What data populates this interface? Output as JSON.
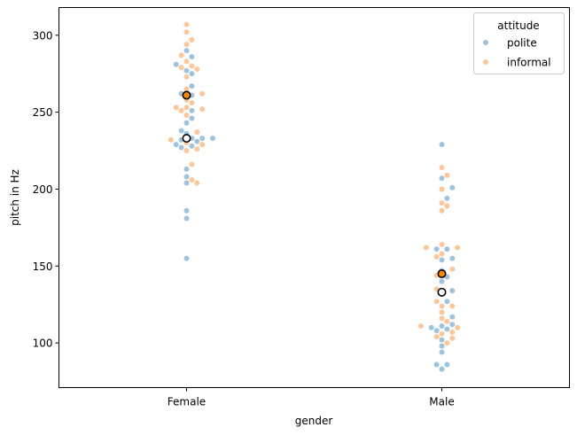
{
  "chart_data": {
    "type": "scatter",
    "subtype": "swarm",
    "xlabel": "gender",
    "ylabel": "pitch in Hz",
    "categories": [
      "Female",
      "Male"
    ],
    "ylim": [
      71,
      318
    ],
    "yticks": [
      100,
      150,
      200,
      250,
      300
    ],
    "grid": false,
    "legend": {
      "title": "attitude",
      "placement": "top-right",
      "entries": [
        {
          "name": "polite",
          "color": "#9ec3df"
        },
        {
          "name": "informal",
          "color": "#ffc698"
        }
      ]
    },
    "series": [
      {
        "name": "polite",
        "color": "#9ec3df",
        "points": [
          {
            "x": "Female",
            "y": [
              155,
              181,
              186,
              204,
              208,
              213,
              227,
              228,
              229,
              231,
              232,
              233,
              233,
              233,
              236,
              238,
              243,
              246,
              251,
              261,
              262,
              267,
              275,
              277,
              281,
              286,
              290
            ]
          },
          {
            "x": "Male",
            "y": [
              83,
              86,
              86,
              94,
              98,
              102,
              108,
              109,
              110,
              111,
              112,
              117,
              127,
              133,
              134,
              140,
              143,
              147,
              154,
              155,
              161,
              161,
              194,
              201,
              207,
              229
            ]
          }
        ],
        "mean": [
          233,
          133
        ]
      },
      {
        "name": "informal",
        "color": "#ffc698",
        "points": [
          {
            "x": "Female",
            "y": [
              204,
              206,
              216,
              225,
              226,
              229,
              230,
              232,
              237,
              248,
              251,
              252,
              253,
              253,
              256,
              258,
              262,
              265,
              273,
              278,
              279,
              280,
              283,
              287,
              294,
              297,
              302,
              307
            ]
          },
          {
            "x": "Male",
            "y": [
              100,
              103,
              104,
              106,
              107,
              110,
              111,
              114,
              116,
              120,
              124,
              124,
              127,
              135,
              144,
              148,
              156,
              158,
              162,
              162,
              164,
              186,
              189,
              191,
              200,
              209,
              214
            ]
          }
        ],
        "mean": [
          261,
          145
        ]
      }
    ]
  }
}
